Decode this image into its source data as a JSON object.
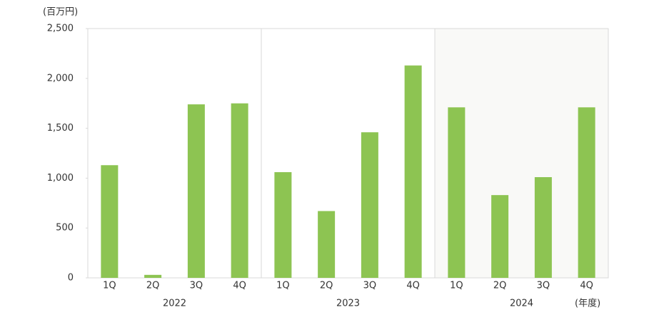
{
  "chart_data": {
    "type": "bar",
    "unit_label": "(百万円)",
    "x_axis_label": "(年度)",
    "color": "#8dc452",
    "groups": [
      {
        "name": "2022",
        "categories": [
          "1Q",
          "2Q",
          "3Q",
          "4Q"
        ],
        "values": [
          1130,
          30,
          1740,
          1750
        ],
        "shaded": false
      },
      {
        "name": "2023",
        "categories": [
          "1Q",
          "2Q",
          "3Q",
          "4Q"
        ],
        "values": [
          1060,
          670,
          1460,
          2130
        ],
        "shaded": false
      },
      {
        "name": "2024",
        "categories": [
          "1Q",
          "2Q",
          "3Q",
          "4Q"
        ],
        "values": [
          1710,
          830,
          1010,
          1710
        ],
        "shaded": true
      }
    ],
    "ylim": [
      0,
      2500
    ],
    "yticks": [
      0,
      500,
      {
        "value": 1000,
        "label": "1,000"
      },
      {
        "value": 1500,
        "label": "1,500"
      },
      {
        "value": 2000,
        "label": "2,000"
      },
      {
        "value": 2500,
        "label": "2,500"
      }
    ]
  }
}
